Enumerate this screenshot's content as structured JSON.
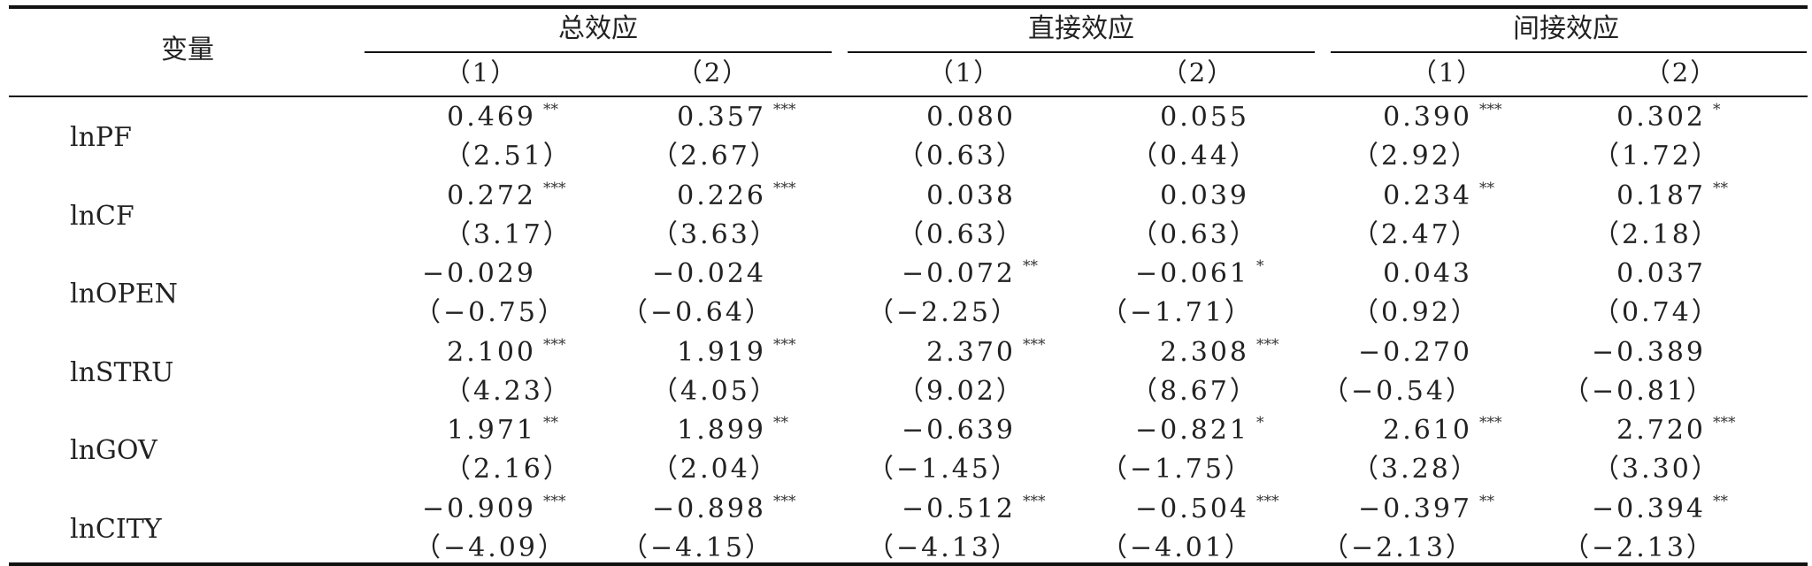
{
  "header": {
    "variable": "变量",
    "groups": [
      "总效应",
      "直接效应",
      "间接效应"
    ],
    "columns": [
      "（1）",
      "（2）",
      "（1）",
      "（2）",
      "（1）",
      "（2）"
    ]
  },
  "rows": [
    {
      "name": "lnPF",
      "coef": [
        "0.469",
        "0.357",
        "0.080",
        "0.055",
        "0.390",
        "0.302"
      ],
      "stars": [
        "**",
        "***",
        "",
        "",
        "***",
        "*"
      ],
      "t": [
        "（2.51）",
        "（2.67）",
        "（0.63）",
        "（0.44）",
        "（2.92）",
        "（1.72）"
      ]
    },
    {
      "name": "lnCF",
      "coef": [
        "0.272",
        "0.226",
        "0.038",
        "0.039",
        "0.234",
        "0.187"
      ],
      "stars": [
        "***",
        "***",
        "",
        "",
        "**",
        "**"
      ],
      "t": [
        "（3.17）",
        "（3.63）",
        "（0.63）",
        "（0.63）",
        "（2.47）",
        "（2.18）"
      ]
    },
    {
      "name": "lnOPEN",
      "coef": [
        "−0.029",
        "−0.024",
        "−0.072",
        "−0.061",
        "0.043",
        "0.037"
      ],
      "stars": [
        "",
        "",
        "**",
        "*",
        "",
        ""
      ],
      "t": [
        "（−0.75）",
        "（−0.64）",
        "（−2.25）",
        "（−1.71）",
        "（0.92）",
        "（0.74）"
      ]
    },
    {
      "name": "lnSTRU",
      "coef": [
        "2.100",
        "1.919",
        "2.370",
        "2.308",
        "−0.270",
        "−0.389"
      ],
      "stars": [
        "***",
        "***",
        "***",
        "***",
        "",
        ""
      ],
      "t": [
        "（4.23）",
        "（4.05）",
        "（9.02）",
        "（8.67）",
        "（−0.54）",
        "（−0.81）"
      ]
    },
    {
      "name": "lnGOV",
      "coef": [
        "1.971",
        "1.899",
        "−0.639",
        "−0.821",
        "2.610",
        "2.720"
      ],
      "stars": [
        "**",
        "**",
        "",
        "*",
        "***",
        "***"
      ],
      "t": [
        "（2.16）",
        "（2.04）",
        "（−1.45）",
        "（−1.75）",
        "（3.28）",
        "（3.30）"
      ]
    },
    {
      "name": "lnCITY",
      "coef": [
        "−0.909",
        "−0.898",
        "−0.512",
        "−0.504",
        "−0.397",
        "−0.394"
      ],
      "stars": [
        "***",
        "***",
        "***",
        "***",
        "**",
        "**"
      ],
      "t": [
        "（−4.09）",
        "（−4.15）",
        "（−4.13）",
        "（−4.01）",
        "（−2.13）",
        "（−2.13）"
      ]
    }
  ]
}
